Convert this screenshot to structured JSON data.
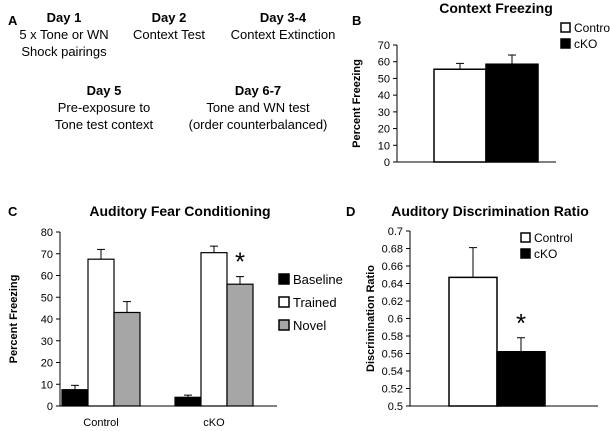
{
  "panel_a": {
    "letter": "A",
    "blocks": [
      {
        "day": "Day 1",
        "lines": [
          "5 x Tone or WN",
          "Shock pairings"
        ]
      },
      {
        "day": "Day 2",
        "lines": [
          "Context Test"
        ]
      },
      {
        "day": "Day 3-4",
        "lines": [
          "Context Extinction"
        ]
      },
      {
        "day": "Day 5",
        "lines": [
          "Pre-exposure to",
          "Tone test context"
        ]
      },
      {
        "day": "Day 6-7",
        "lines": [
          "Tone and WN test",
          "(order counterbalanced)"
        ]
      }
    ]
  },
  "chart_data": [
    {
      "panel": "B",
      "type": "bar",
      "title": "Context Freezing",
      "xlabel": "",
      "ylabel": "Percent Freezing",
      "ylim": [
        0,
        70
      ],
      "yticks": [
        0,
        10,
        20,
        30,
        40,
        50,
        60,
        70
      ],
      "categories": [
        "Control",
        "cKO"
      ],
      "values": [
        55.5,
        58.5
      ],
      "errors": [
        3.5,
        5.5
      ],
      "colors": [
        "#ffffff",
        "#000000"
      ],
      "legend": {
        "position": "top-right",
        "items": [
          {
            "label": "Control",
            "color": "#ffffff"
          },
          {
            "label": "cKO",
            "color": "#000000"
          }
        ]
      }
    },
    {
      "panel": "C",
      "type": "bar",
      "title": "Auditory Fear Conditioning",
      "xlabel": "",
      "ylabel": "Percent Freezing",
      "ylim": [
        0,
        80
      ],
      "yticks": [
        0,
        10,
        20,
        30,
        40,
        50,
        60,
        70,
        80
      ],
      "categories": [
        "Control",
        "cKO"
      ],
      "series": [
        {
          "name": "Baseline",
          "color": "#000000",
          "values": [
            7.5,
            4.0
          ],
          "errors": [
            2.0,
            1.0
          ]
        },
        {
          "name": "Trained",
          "color": "#ffffff",
          "values": [
            67.5,
            70.5
          ],
          "errors": [
            4.5,
            3.0
          ]
        },
        {
          "name": "Novel",
          "color": "#a6a6a6",
          "values": [
            43.0,
            56.0
          ],
          "errors": [
            5.0,
            3.5
          ]
        }
      ],
      "annotations": [
        {
          "text": "*",
          "category": "cKO",
          "series": "Novel"
        }
      ],
      "legend": {
        "position": "right",
        "items": [
          {
            "label": "Baseline",
            "color": "#000000"
          },
          {
            "label": "Trained",
            "color": "#ffffff"
          },
          {
            "label": "Novel",
            "color": "#a6a6a6"
          }
        ]
      }
    },
    {
      "panel": "D",
      "type": "bar",
      "title": "Auditory Discrimination Ratio",
      "xlabel": "",
      "ylabel": "Discrimination Ratio",
      "ylim": [
        0.5,
        0.7
      ],
      "yticks": [
        "0.5",
        "0.52",
        "0.54",
        "0.56",
        "0.58",
        "0.6",
        "0.62",
        "0.64",
        "0.66",
        "0.68",
        "0.7"
      ],
      "categories": [
        "Control",
        "cKO"
      ],
      "values": [
        0.647,
        0.562
      ],
      "errors": [
        0.034,
        0.016
      ],
      "colors": [
        "#ffffff",
        "#000000"
      ],
      "annotations": [
        {
          "text": "*",
          "category": "cKO"
        }
      ],
      "legend": {
        "position": "top-right",
        "items": [
          {
            "label": "Control",
            "color": "#ffffff"
          },
          {
            "label": "cKO",
            "color": "#000000"
          }
        ]
      }
    }
  ]
}
